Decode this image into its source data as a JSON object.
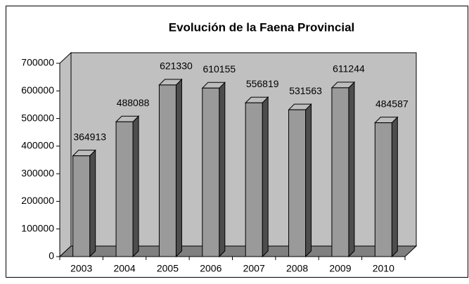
{
  "chart_data": {
    "type": "bar3d",
    "title": "Evolución de la Faena Provincial",
    "categories": [
      "2003",
      "2004",
      "2005",
      "2006",
      "2007",
      "2008",
      "2009",
      "2010"
    ],
    "values": [
      364913,
      488088,
      621330,
      610155,
      556819,
      531563,
      611244,
      484587
    ],
    "color": "#9a9a9a",
    "ylim": [
      0,
      700000
    ],
    "yticks": [
      0,
      100000,
      200000,
      300000,
      400000,
      500000,
      600000,
      700000
    ]
  }
}
